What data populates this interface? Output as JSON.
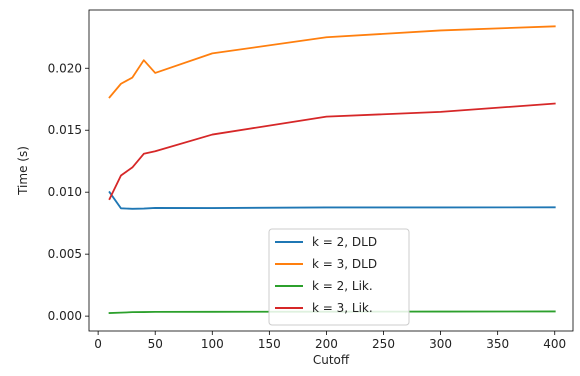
{
  "chart_data": {
    "type": "line",
    "title": "",
    "xlabel": "Cutoff",
    "ylabel": "Time (s)",
    "xlim": [
      -8,
      416
    ],
    "ylim": [
      -0.0012,
      0.0247
    ],
    "x_ticks": [
      0,
      50,
      100,
      150,
      200,
      250,
      300,
      350,
      400
    ],
    "x_tick_labels": [
      "0",
      "50",
      "100",
      "150",
      "200",
      "250",
      "300",
      "350",
      "400"
    ],
    "y_ticks": [
      0.0,
      0.005,
      0.01,
      0.015,
      0.02
    ],
    "y_tick_labels": [
      "0.000",
      "0.005",
      "0.010",
      "0.015",
      "0.020"
    ],
    "grid": false,
    "legend_location": "lower-center",
    "x": [
      10,
      20,
      30,
      40,
      50,
      100,
      200,
      300,
      400
    ],
    "series": [
      {
        "name": "k = 2, DLD",
        "color": "#1f77b4",
        "values": [
          0.01,
          0.0087,
          0.00866,
          0.00868,
          0.00873,
          0.00872,
          0.00877,
          0.00877,
          0.00878
        ]
      },
      {
        "name": "k = 3, DLD",
        "color": "#ff7f0e",
        "values": [
          0.01765,
          0.01875,
          0.01925,
          0.02065,
          0.01962,
          0.0212,
          0.0225,
          0.02305,
          0.02338
        ]
      },
      {
        "name": "k = 2, Lik.",
        "color": "#2ca02c",
        "values": [
          0.00025,
          0.00028,
          0.00032,
          0.00033,
          0.00034,
          0.00035,
          0.00036,
          0.00037,
          0.00038
        ]
      },
      {
        "name": "k = 3, Lik.",
        "color": "#d62728",
        "values": [
          0.00945,
          0.01135,
          0.012,
          0.0131,
          0.0133,
          0.01465,
          0.0161,
          0.01648,
          0.01715
        ]
      }
    ]
  }
}
